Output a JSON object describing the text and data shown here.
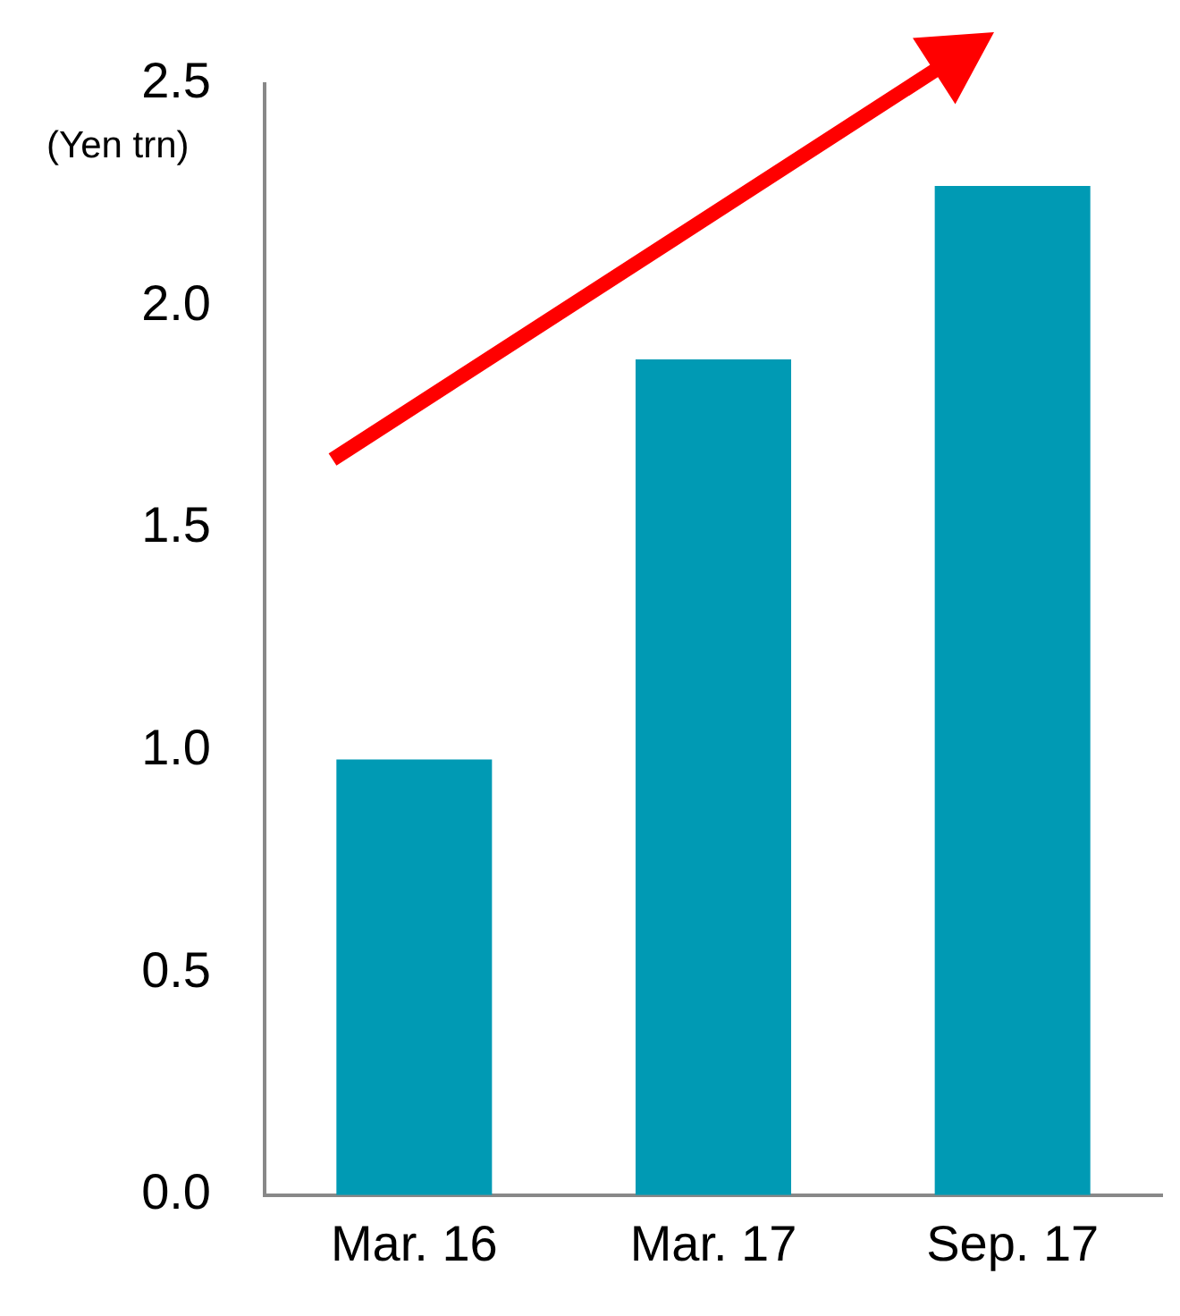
{
  "chart_data": {
    "type": "bar",
    "ylabel": "(Yen trn)",
    "categories": [
      "Mar. 16",
      "Mar. 17",
      "Sep. 17"
    ],
    "values": [
      0.98,
      1.88,
      2.27
    ],
    "color": "#009ab4",
    "ylim": [
      0,
      2.5
    ],
    "yticks": [
      {
        "value": 0,
        "label": "0.0"
      },
      0.5,
      {
        "value": 1,
        "label": "1.0"
      },
      1.5,
      {
        "value": 2,
        "label": "2.0"
      },
      2.5
    ],
    "grid": false,
    "legend": false
  }
}
